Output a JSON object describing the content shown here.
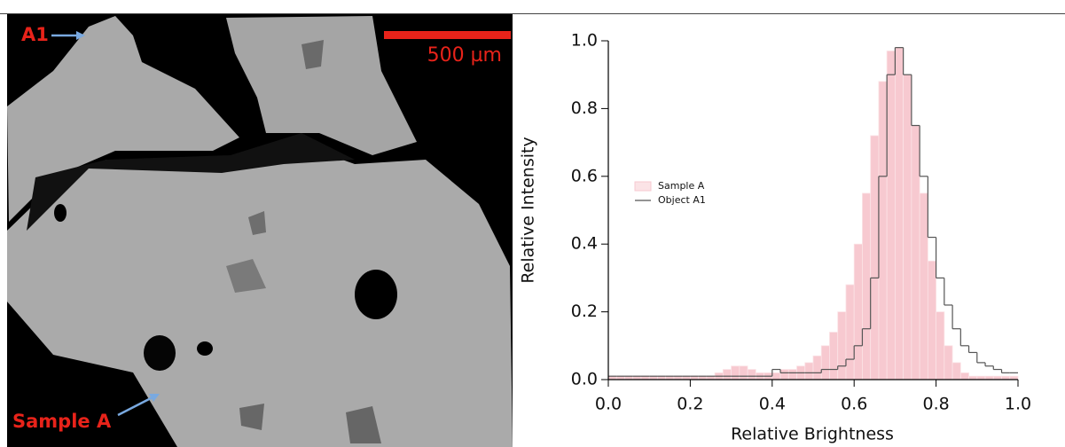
{
  "image": {
    "labels": [
      "A1",
      "Sample A",
      "500 µm"
    ]
  },
  "chart_data": {
    "type": "histogram",
    "x_label": "Relative Brightness",
    "y_label": "Relative Intensity",
    "bins": [
      0,
      0.02,
      0.04,
      0.06,
      0.08,
      0.1,
      0.12,
      0.14,
      0.16,
      0.18,
      0.2,
      0.22,
      0.24,
      0.26,
      0.28,
      0.3,
      0.32,
      0.34,
      0.36,
      0.38,
      0.4,
      0.42,
      0.44,
      0.46,
      0.48,
      0.5,
      0.52,
      0.54,
      0.56,
      0.58,
      0.6,
      0.62,
      0.64,
      0.66,
      0.68,
      0.7,
      0.72,
      0.74,
      0.76,
      0.78,
      0.8,
      0.82,
      0.84,
      0.86,
      0.88,
      0.9,
      0.92,
      0.94,
      0.96,
      0.98,
      1
    ],
    "series": [
      {
        "name": "Sample A",
        "style": "bars",
        "color": "#f7c9d0",
        "values": [
          0.01,
          0.01,
          0.01,
          0.01,
          0.01,
          0.01,
          0.01,
          0.01,
          0.01,
          0.01,
          0.01,
          0.01,
          0.01,
          0.02,
          0.03,
          0.04,
          0.04,
          0.03,
          0.02,
          0.02,
          0.02,
          0.03,
          0.03,
          0.04,
          0.05,
          0.07,
          0.1,
          0.14,
          0.2,
          0.28,
          0.4,
          0.55,
          0.72,
          0.88,
          0.97,
          0.98,
          0.9,
          0.75,
          0.55,
          0.35,
          0.2,
          0.1,
          0.05,
          0.02,
          0.01,
          0.01,
          0.01,
          0.01,
          0.01,
          0.01
        ]
      },
      {
        "name": "Object A1",
        "style": "step",
        "color": "#555555",
        "values": [
          0.01,
          0.01,
          0.01,
          0.01,
          0.01,
          0.01,
          0.01,
          0.01,
          0.01,
          0.01,
          0.01,
          0.01,
          0.01,
          0.01,
          0.01,
          0.01,
          0.01,
          0.01,
          0.01,
          0.01,
          0.03,
          0.02,
          0.02,
          0.02,
          0.02,
          0.02,
          0.03,
          0.03,
          0.04,
          0.06,
          0.1,
          0.15,
          0.3,
          0.6,
          0.9,
          0.98,
          0.9,
          0.75,
          0.6,
          0.42,
          0.3,
          0.22,
          0.15,
          0.1,
          0.08,
          0.05,
          0.04,
          0.03,
          0.02,
          0.02
        ]
      }
    ],
    "xlim": [
      0,
      1
    ],
    "ylim": [
      0,
      1
    ],
    "xticks": [
      {
        "value": 0,
        "label": "0.0"
      },
      0.2,
      0.4,
      0.6,
      0.8,
      {
        "value": 1,
        "label": "1.0"
      }
    ],
    "yticks": [
      {
        "value": 0,
        "label": "0.0"
      },
      0.2,
      0.4,
      0.6,
      0.8,
      {
        "value": 1,
        "label": "1.0"
      }
    ],
    "grid": false,
    "legend": "left"
  }
}
